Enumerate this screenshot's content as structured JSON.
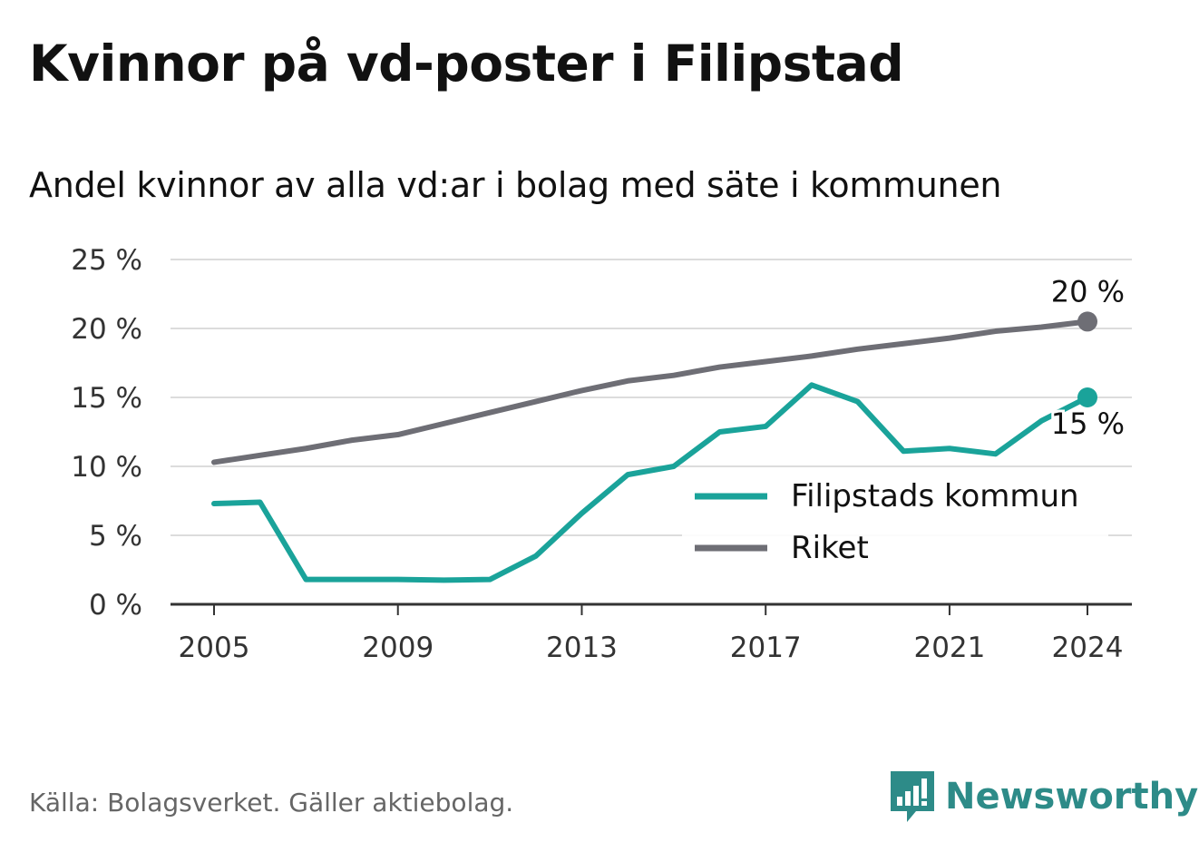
{
  "title": "Kvinnor på vd-poster i Filipstad",
  "subtitle": "Andel kvinnor av alla vd:ar i bolag med säte i kommunen",
  "source": "Källa: Bolagsverket. Gäller aktiebolag.",
  "brand": {
    "name": "Newsworthy",
    "icon": "newsworthy-logo-icon",
    "color": "#2d8b88"
  },
  "chart_data": {
    "type": "line",
    "x": [
      2005,
      2006,
      2007,
      2008,
      2009,
      2010,
      2011,
      2012,
      2013,
      2014,
      2015,
      2016,
      2017,
      2018,
      2019,
      2020,
      2021,
      2022,
      2023,
      2024
    ],
    "series": [
      {
        "name": "Filipstads kommun",
        "color": "#1aa39a",
        "values": [
          7.3,
          7.4,
          1.8,
          1.8,
          1.8,
          1.75,
          1.8,
          3.5,
          6.6,
          9.4,
          10.0,
          12.5,
          12.9,
          15.9,
          14.7,
          11.1,
          11.3,
          10.9,
          13.3,
          15.0
        ],
        "end_label": "15 %"
      },
      {
        "name": "Riket",
        "color": "#6e6e75",
        "values": [
          10.3,
          10.8,
          11.3,
          11.9,
          12.3,
          13.1,
          13.9,
          14.7,
          15.5,
          16.2,
          16.6,
          17.2,
          17.6,
          18.0,
          18.5,
          18.9,
          19.3,
          19.8,
          20.1,
          20.5
        ],
        "end_label": "20 %"
      }
    ],
    "x_ticks": [
      "2005",
      "2009",
      "2013",
      "2017",
      "2021",
      "2024"
    ],
    "y_ticks": [
      "0 %",
      "5 %",
      "10 %",
      "15 %",
      "20 %",
      "25 %"
    ],
    "ylim": [
      0,
      25
    ],
    "xlim": [
      2005,
      2024
    ],
    "grid": true,
    "legend_position": "bottom-right",
    "xlabel": "",
    "ylabel": ""
  }
}
